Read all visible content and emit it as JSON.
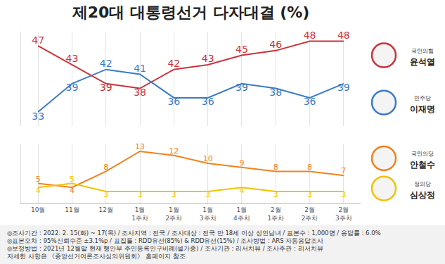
{
  "chart_data": {
    "type": "line",
    "title": "제20대 대통령선거 다자대결 (%)",
    "categories": [
      "10월",
      "11월",
      "12월",
      "1월 1주차",
      "1월 2주차",
      "1월 3주차",
      "1월 4주차",
      "2월 1주차",
      "2월 2주차",
      "2월 3주차"
    ],
    "series": [
      {
        "name": "윤석열",
        "party": "국민의힘",
        "color": "#c8343b",
        "values": [
          47,
          43,
          39,
          38,
          42,
          43,
          45,
          46,
          48,
          48
        ]
      },
      {
        "name": "이재명",
        "party": "민주당",
        "color": "#3a7bc8",
        "values": [
          33,
          39,
          42,
          41,
          36,
          36,
          39,
          38,
          36,
          39
        ]
      },
      {
        "name": "안철수",
        "party": "국민의당",
        "color": "#f0821e",
        "axis": "y2",
        "values": [
          5,
          4,
          8,
          13,
          12,
          10,
          9,
          8,
          8,
          7
        ]
      },
      {
        "name": "심상정",
        "party": "정의당",
        "color": "#f2c200",
        "axis": "y2",
        "values": [
          4,
          5,
          3,
          3,
          3,
          3,
          4,
          3,
          3,
          3
        ]
      }
    ],
    "ylim": [
      30,
      50
    ],
    "yticks": [],
    "y2lim": [
      0,
      15
    ],
    "y2ticks": [],
    "grid": true,
    "data_labels": true,
    "tick_labels": "x",
    "legend": "right",
    "notes": [
      "◎조사기간 : 2022. 2. 15(화) ~ 17(목) / 조사지역 : 전국 / 조사대상 : 전국 만 18세 이상 성인남녀 / 표본수 : 1,000명 / 응답률 : 6.0%",
      "◎표본오차 : 95%신뢰수준 ±3.1%p / 표집틀 : RDD유선(85%) & RDD유선(15%) / 조사방법 : ARS 자동응답조사",
      "◎보정방법 : 2021년 12월말 현재 행안부 주민등록인구비례(셀가중) / 조사기관 : 리서치뷰 / 조사주관 : 리서치뷰",
      "자세한 사항은 《중앙선거여론조사심의위원회》 홈페이지 참조"
    ]
  }
}
